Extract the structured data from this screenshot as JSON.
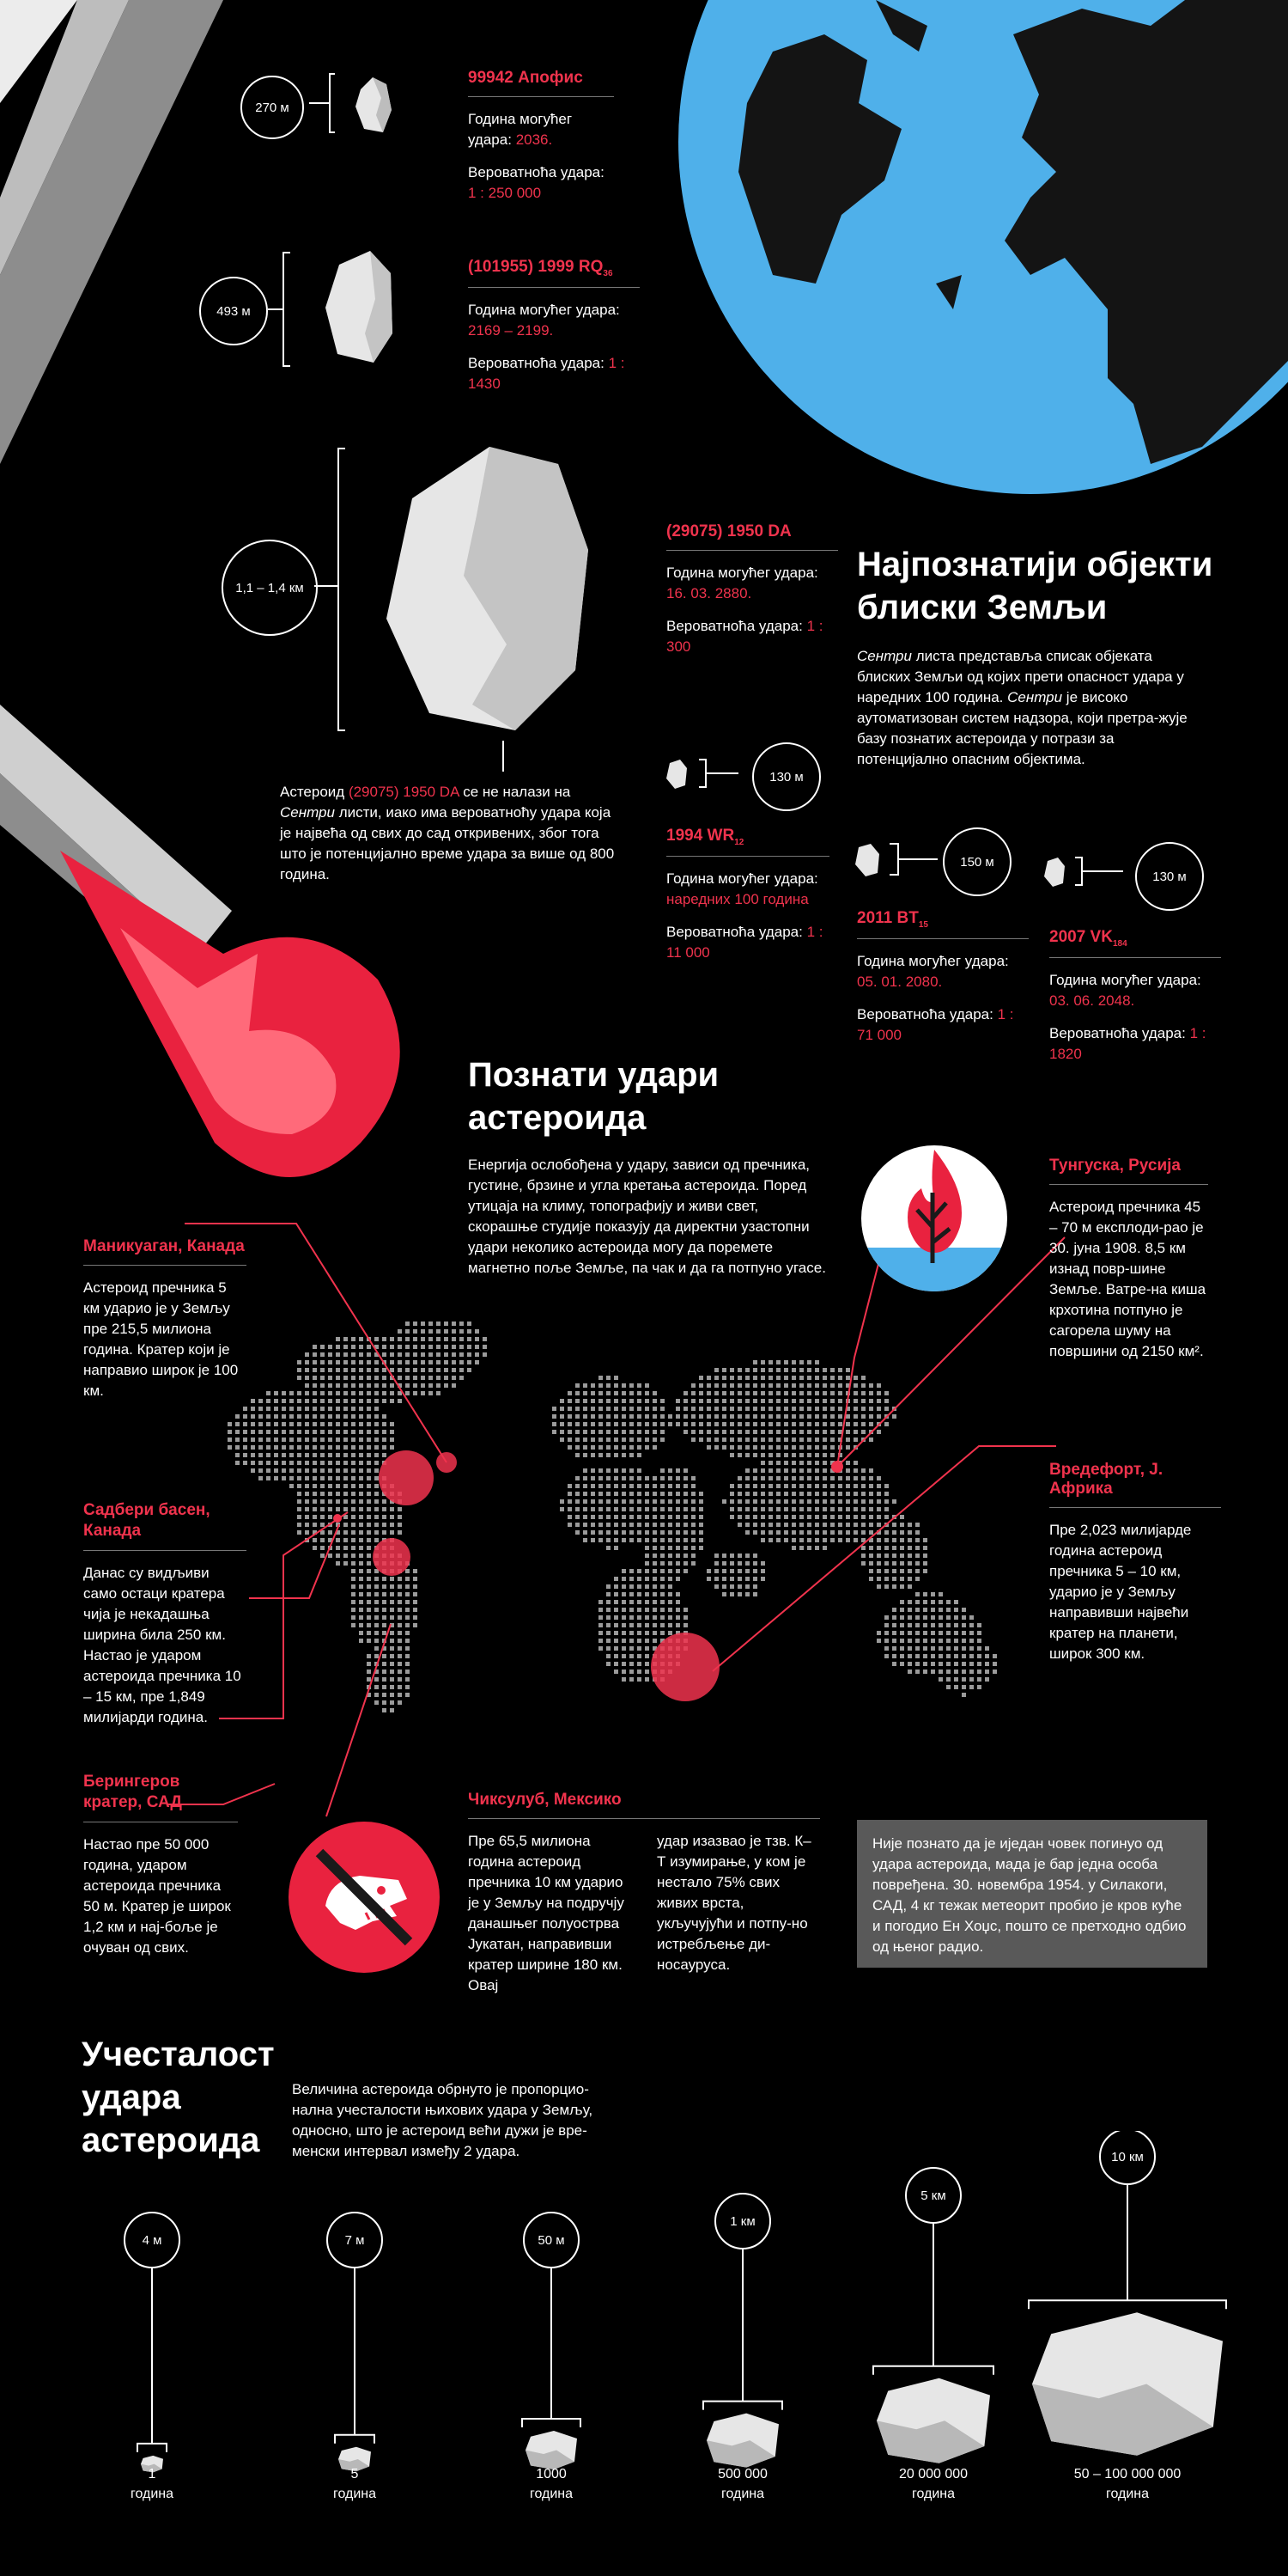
{
  "asteroids_top": [
    {
      "name": "99942 Апофис",
      "size": "270 м",
      "year_label": "Година могућег удара:",
      "year": "2036.",
      "prob_label": "Вероватноћа удара:",
      "prob": "1 : 250 000"
    },
    {
      "name": "(101955) 1999 RQ",
      "name_sub": "36",
      "size": "493 м",
      "year_label": "Година могућег удара:",
      "year": "2169 – 2199.",
      "prob_label": "Вероватноћа удара:",
      "prob": "1 : 1430"
    },
    {
      "name": "(29075) 1950 DA",
      "size": "1,1 – 1,4 км",
      "year_label": "Година могућег удара:",
      "year": "16. 03. 2880.",
      "prob_label": "Вероватноћа удара:",
      "prob": "1 : 300"
    },
    {
      "name": "1994 WR",
      "name_sub": "12",
      "size": "130 м",
      "year_label": "Година могућег удара:",
      "year": "наредних 100 година",
      "prob_label": "Вероватноћа удара:",
      "prob": "1 : 11 000"
    },
    {
      "name": "2011 BT",
      "name_sub": "15",
      "size": "150 м",
      "year_label": "Година могућег удара:",
      "year": "05. 01. 2080.",
      "prob_label": "Вероватноћа удара:",
      "prob": "1 : 71 000"
    },
    {
      "name": "2007 VK",
      "name_sub": "184",
      "size": "130 м",
      "year_label": "Година могућег удара:",
      "year": "03. 06. 2048.",
      "prob_label": "Вероватноћа удара:",
      "prob": "1 : 1820"
    }
  ],
  "section_known": {
    "title_line1": "Најпознатији објекти",
    "title_line2": "блиски Земљи",
    "body_em1": "Сентри",
    "body_part1": " листа представља списак објеката блиских Земљи од којих прети опасност удара у наредних 100 година. ",
    "body_em2": "Сентри",
    "body_part2": " је високо аутоматизован систем надзора, који претра-жује базу познатих астероида у потрази за потенцијално опасним објектима."
  },
  "note_1950da": {
    "pre": "Астероид ",
    "name": "(29075) 1950 DA",
    "mid": " се не налази на ",
    "em": "Сентри",
    "post": " листи, иако има вероватноћу удара која је највећа од свих до сад откривених, због тога што је потенцијално време удара за више од 800 година."
  },
  "section_impacts": {
    "title_line1": "Познати удари",
    "title_line2": "астероида",
    "body": "Енергија ослобођена у удару, зависи од пречника, густине, брзине и угла кретања астероида. Поред утицаја на климу, топографију и живи свет, скорашње студије показују да директни узастопни удари неколико астероида могу да поремете магнетно поље Земље, па чак и да га потпуно угасе."
  },
  "impacts": [
    {
      "title": "Маникуаган, Канада",
      "text": "Астероид пречника 5 км ударио је у Земљу пре 215,5 милиона година. Кратер који је направио широк је 100 км."
    },
    {
      "title": "Садбери басен, Канада",
      "text": "Данас су видљиви само остаци кратера чија је некадашња ширина била 250 км. Настао је ударом астероида пречника 10 – 15 км, пре 1,849 милијарди година."
    },
    {
      "title": "Берингеров кратер, САД",
      "text": "Настао пре 50 000 година, ударом астероида пречника 50 м. Кратер је широк 1,2 км и нај-боље је очуван од свих."
    },
    {
      "title": "Тунгуска, Русија",
      "text": "Астероид пречника 45 – 70 м експлоди-рао је 30. јуна 1908. 8,5 км изнад повр-шине Земље. Ватре-на киша крхотина потпуно је сагорела шуму на површини од 2150 км²."
    },
    {
      "title": "Вредефорт, Ј. Африка",
      "text": "Пре 2,023 милијарде година астероид пречника 5 – 10 км, ударио је у Земљу направивши највећи кратер на планети, широк 300 км."
    },
    {
      "title": "Чиксулуб, Мексико",
      "text": "Пре 65,5 милиона година астероид пречника 10 км ударио је у Земљу на подручју данашњег полуострва Јукатан, направивши кратер ширине 180 км. Овај",
      "text2": "удар изазвао је тзв. К–Т изумирање, у ком је нестало 75% свих живих врста, укључујући и потпу-но истребљење ди-носауруса."
    }
  ],
  "graybox": "Није познато да је иједан човек погинуо од удара астероида, мада је бар једна особа повређена. 30. новембра 1954. у Силакоги, САД, 4 кг тежак метеорит пробио је кров куће и погодио Ен Хоџс, пошто се претходно одбио од њеног радио.",
  "section_freq": {
    "title_line1": "Учесталост",
    "title_line2": "удара",
    "title_line3": "астероида",
    "body": "Величина астероида обрнуто је пропорцио-нална учесталости њихових удара у Земљу, односно, што је астероид већи дужи је вре-менски интервал између 2 удара."
  },
  "freq": [
    {
      "size": "4 м",
      "interval": "1",
      "unit": "година"
    },
    {
      "size": "7 м",
      "interval": "5",
      "unit": "година"
    },
    {
      "size": "50 м",
      "interval": "1000",
      "unit": "година"
    },
    {
      "size": "1 км",
      "interval": "500 000",
      "unit": "година"
    },
    {
      "size": "5 км",
      "interval": "20 000 000",
      "unit": "година"
    },
    {
      "size": "10 км",
      "interval": "50 – 100 000 000",
      "unit": "година"
    }
  ],
  "colors": {
    "accent": "#f0334d",
    "earth_blue": "#4fb0ea",
    "rock": "#e6e6e6",
    "box_gray": "#595959"
  }
}
